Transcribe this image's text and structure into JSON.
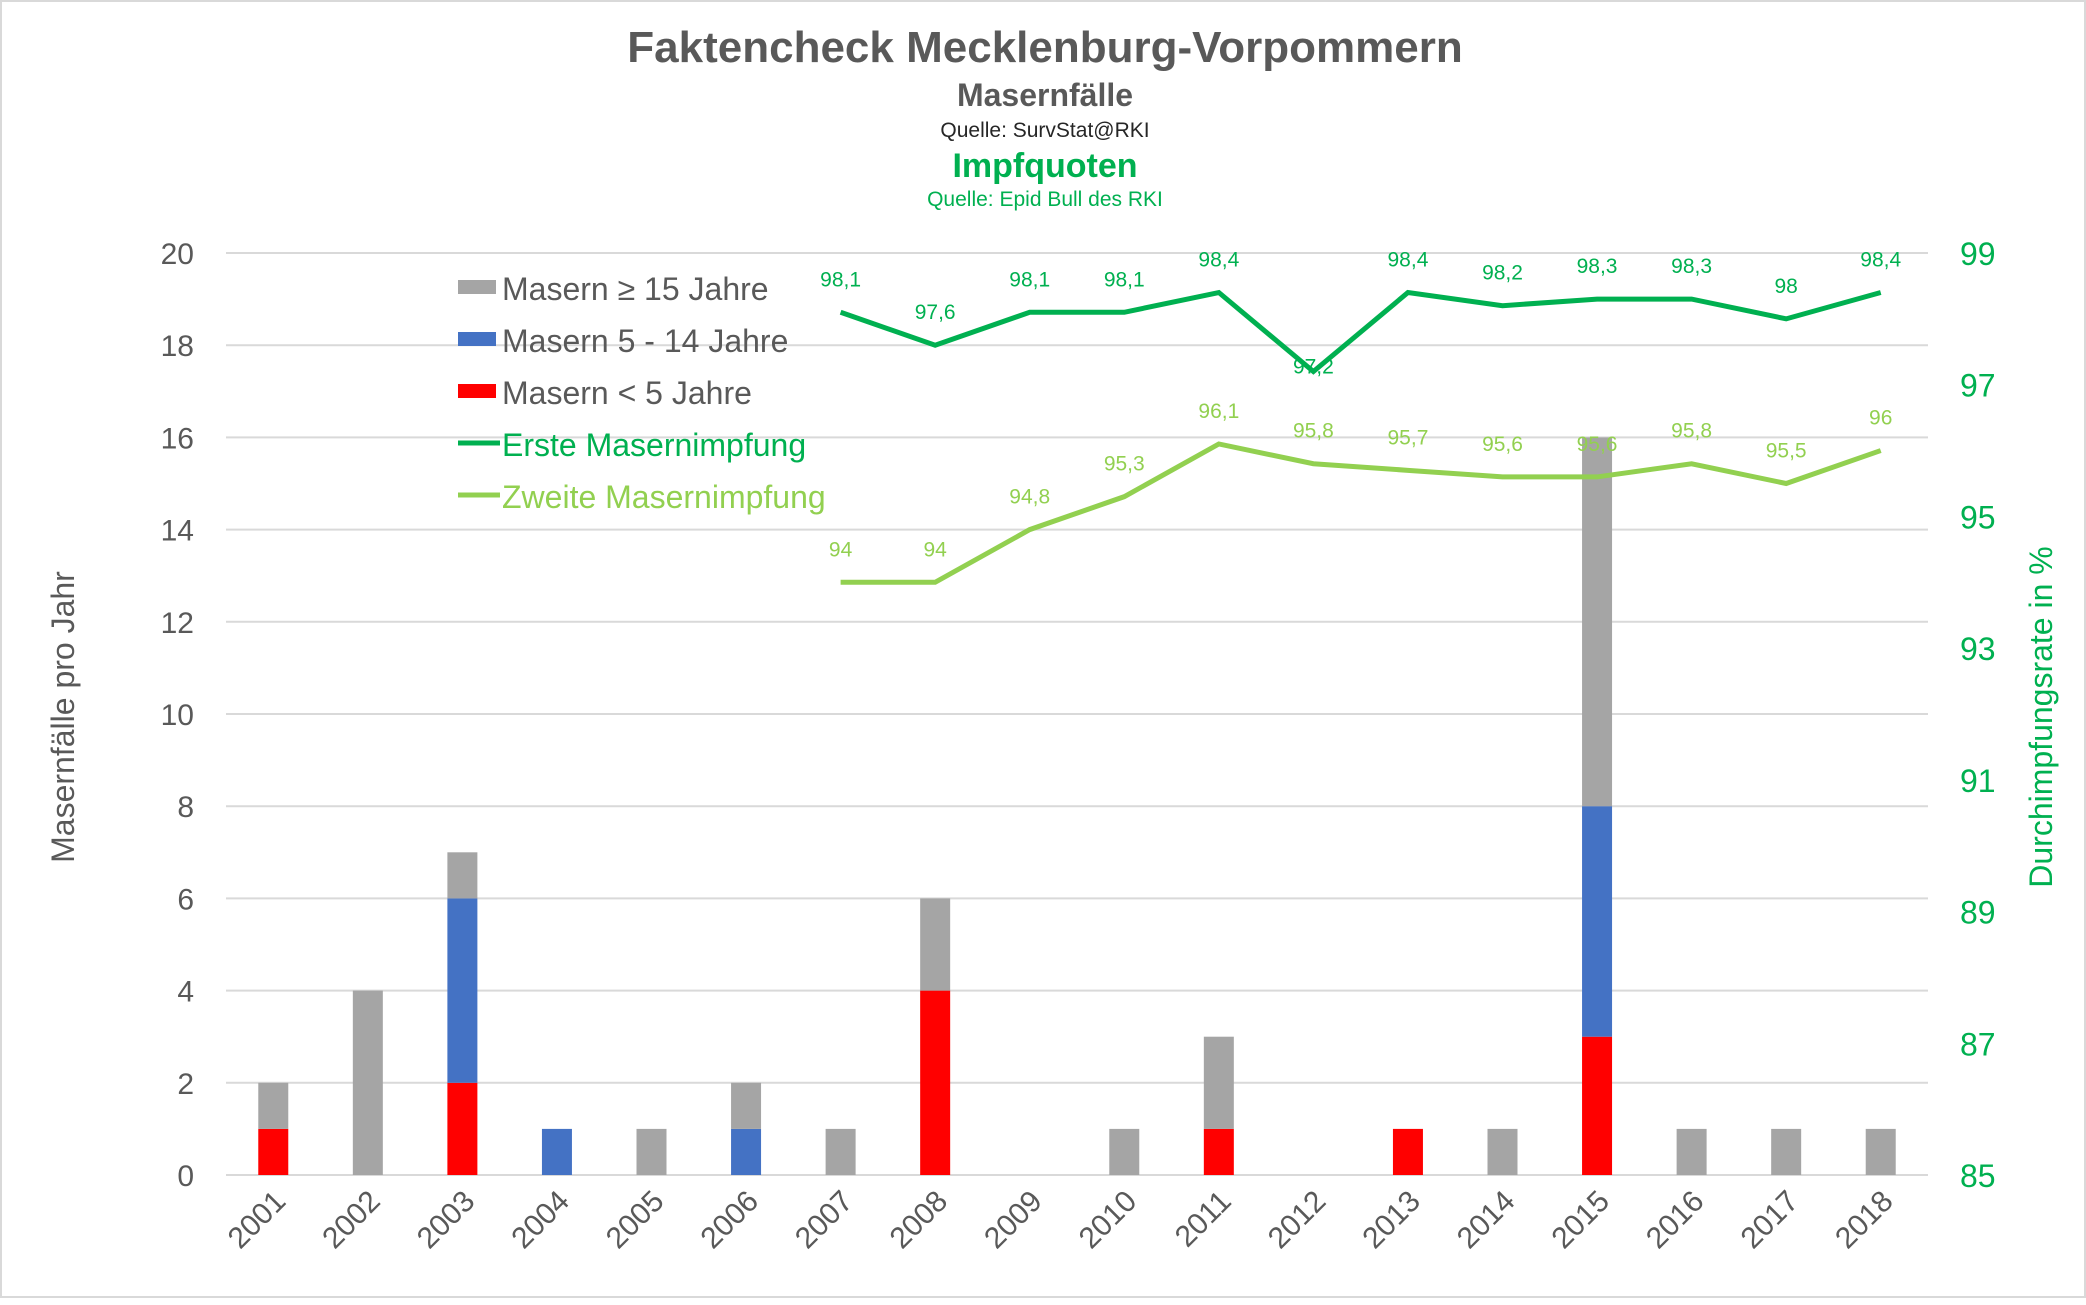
{
  "chart_data": {
    "type": "bar+line",
    "title": "Faktencheck Mecklenburg-Vorpommern",
    "subtitle_cases": "Masernfälle",
    "source_cases": "Quelle: SurvStat@RKI",
    "subtitle_vacc": "Impfquoten",
    "source_vacc": "Quelle: Epid Bull des RKI",
    "ylabel": "Masernfälle pro Jahr",
    "y2label": "Durchimpfungsrate in %",
    "ylim": [
      0,
      20
    ],
    "yticks": [
      "0",
      "2",
      "4",
      "6",
      "8",
      "10",
      "12",
      "14",
      "16",
      "18",
      "20"
    ],
    "y2lim": [
      85,
      99
    ],
    "y2ticks": [
      "85",
      "87",
      "89",
      "91",
      "93",
      "95",
      "97",
      "99"
    ],
    "grid": true,
    "legend_position": "top-left",
    "categories": [
      "2001",
      "2002",
      "2003",
      "2004",
      "2005",
      "2006",
      "2007",
      "2008",
      "2009",
      "2010",
      "2011",
      "2012",
      "2013",
      "2014",
      "2015",
      "2016",
      "2017",
      "2018"
    ],
    "bar_series": [
      {
        "name": "Masern < 5 Jahre",
        "color": "#ff0000",
        "values": [
          1,
          0,
          2,
          0,
          0,
          0,
          0,
          4,
          0,
          0,
          1,
          0,
          1,
          0,
          3,
          0,
          0,
          0
        ]
      },
      {
        "name": "Masern 5 - 14 Jahre",
        "color": "#4472c4",
        "values": [
          0,
          0,
          4,
          1,
          0,
          1,
          0,
          0,
          0,
          0,
          0,
          0,
          0,
          0,
          5,
          0,
          0,
          0
        ]
      },
      {
        "name": "Masern ≥ 15 Jahre",
        "color": "#a5a5a5",
        "values": [
          1,
          4,
          1,
          0,
          1,
          1,
          1,
          2,
          0,
          1,
          2,
          0,
          0,
          1,
          8,
          1,
          1,
          1
        ]
      }
    ],
    "line_series": [
      {
        "name": "Erste Masernimpfung",
        "color": "#00b050",
        "values": [
          null,
          null,
          null,
          null,
          null,
          null,
          98.1,
          97.6,
          98.1,
          98.1,
          98.4,
          97.2,
          98.4,
          98.2,
          98.3,
          98.3,
          98,
          98.4
        ],
        "labels": [
          "",
          "",
          "",
          "",
          "",
          "",
          "98,1",
          "97,6",
          "98,1",
          "98,1",
          "98,4",
          "97,2",
          "98,4",
          "98,2",
          "98,3",
          "98,3",
          "98",
          "98,4"
        ]
      },
      {
        "name": "Zweite Masernimpfung",
        "color": "#92d050",
        "values": [
          null,
          null,
          null,
          null,
          null,
          null,
          94,
          94,
          94.8,
          95.3,
          96.1,
          95.8,
          95.7,
          95.6,
          95.6,
          95.8,
          95.5,
          96
        ],
        "labels": [
          "",
          "",
          "",
          "",
          "",
          "",
          "94",
          "94",
          "94,8",
          "95,3",
          "96,1",
          "95,8",
          "95,7",
          "95,6",
          "95,6",
          "95,8",
          "95,5",
          "96"
        ]
      }
    ],
    "legend": [
      "Masern ≥ 15 Jahre",
      "Masern 5 - 14 Jahre",
      "Masern < 5 Jahre",
      "Erste Masernimpfung",
      "Zweite Masernimpfung"
    ]
  }
}
